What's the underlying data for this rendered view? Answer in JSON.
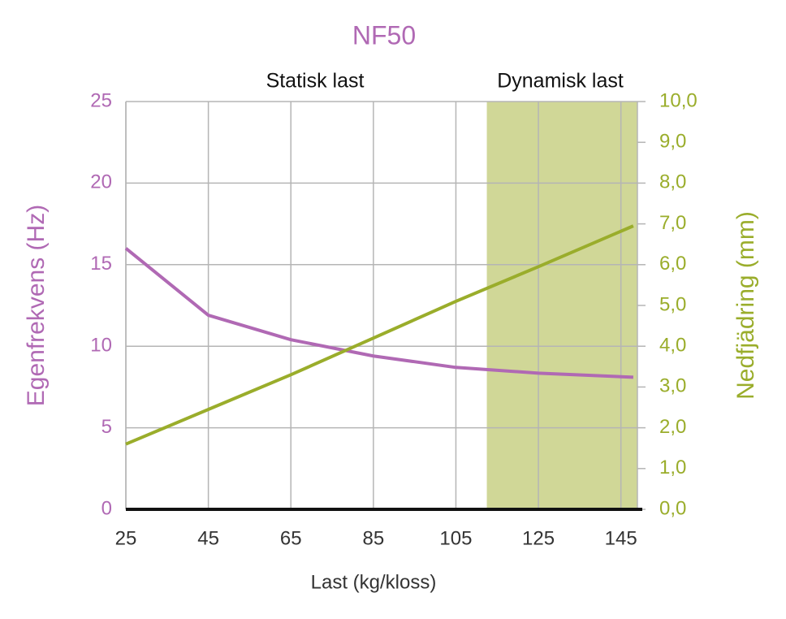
{
  "chart_data": {
    "type": "line",
    "title": "NF50",
    "x_label": "Last (kg/kloss)",
    "y_label": "Egenfrekvens (Hz)",
    "y2_label": "Nedfjädring (mm)",
    "annotations": [
      {
        "text": "Statisk last",
        "x": 25
      },
      {
        "text": "Dynamisk last",
        "x": 112.5
      }
    ],
    "shade": {
      "x": [
        112.5,
        149
      ],
      "color": "#d0d797"
    },
    "x": [
      25,
      45,
      65,
      85,
      105,
      125,
      148
    ],
    "series": [
      {
        "name": "Egenfrekvens (Hz)",
        "color": "#b069b4",
        "values": [
          16,
          11.9,
          10.4,
          9.4,
          8.7,
          8.35,
          8.1
        ]
      },
      {
        "name": "Nedfjädring (mm)",
        "color": "#9aad2b",
        "axis": "y2",
        "values": [
          1.6,
          2.45,
          3.3,
          4.2,
          5.1,
          5.95,
          6.95
        ]
      }
    ],
    "xlim": [
      25,
      149
    ],
    "xticks": [
      25,
      45,
      65,
      85,
      105,
      125,
      145
    ],
    "ylim": [
      0,
      25
    ],
    "yticks": [
      0,
      5,
      10,
      15,
      20,
      25
    ],
    "y2lim": [
      0,
      10
    ],
    "y2ticks": [
      {
        "value": 0,
        "label": "0,0"
      },
      {
        "value": 1,
        "label": "1,0"
      },
      {
        "value": 2,
        "label": "2,0"
      },
      {
        "value": 3,
        "label": "3,0"
      },
      {
        "value": 4,
        "label": "4,0"
      },
      {
        "value": 5,
        "label": "5,0"
      },
      {
        "value": 6,
        "label": "6,0"
      },
      {
        "value": 7,
        "label": "7,0"
      },
      {
        "value": 8,
        "label": "8,0"
      },
      {
        "value": 9,
        "label": "9,0"
      },
      {
        "value": 10,
        "label": "10,0"
      }
    ],
    "grid": true
  }
}
